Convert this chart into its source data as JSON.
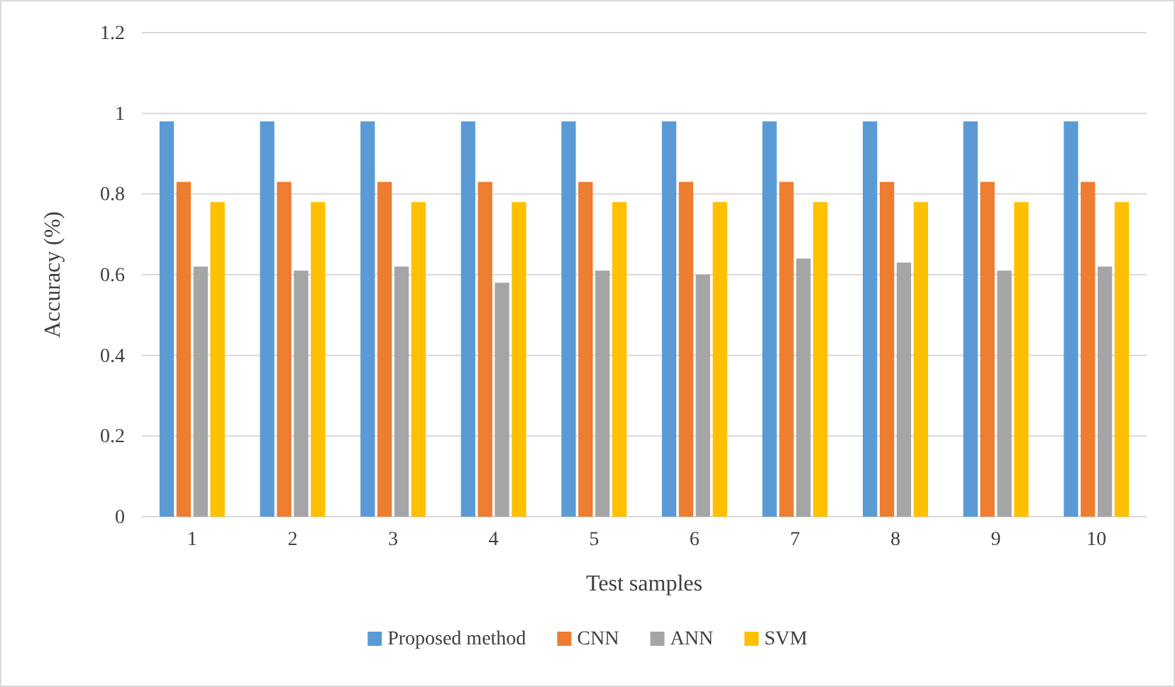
{
  "chart_data": {
    "type": "bar",
    "xlabel": "Test samples",
    "ylabel": "Accuracy (%)",
    "categories": [
      "1",
      "2",
      "3",
      "4",
      "5",
      "6",
      "7",
      "8",
      "9",
      "10"
    ],
    "series": [
      {
        "name": "Proposed method",
        "color": "#5b9bd5",
        "values": [
          0.98,
          0.98,
          0.98,
          0.98,
          0.98,
          0.98,
          0.98,
          0.98,
          0.98,
          0.98
        ]
      },
      {
        "name": "CNN",
        "color": "#ed7d31",
        "values": [
          0.83,
          0.83,
          0.83,
          0.83,
          0.83,
          0.83,
          0.83,
          0.83,
          0.83,
          0.83
        ]
      },
      {
        "name": "ANN",
        "color": "#a5a5a5",
        "values": [
          0.62,
          0.61,
          0.62,
          0.58,
          0.61,
          0.6,
          0.64,
          0.63,
          0.61,
          0.62
        ]
      },
      {
        "name": "SVM",
        "color": "#ffc000",
        "values": [
          0.78,
          0.78,
          0.78,
          0.78,
          0.78,
          0.78,
          0.78,
          0.78,
          0.78,
          0.78
        ]
      }
    ],
    "ylim": [
      0,
      1.2
    ],
    "yticks": [
      0,
      0.2,
      0.4,
      0.6,
      0.8,
      1,
      1.2
    ],
    "grid": "y",
    "legend": "bottom"
  }
}
